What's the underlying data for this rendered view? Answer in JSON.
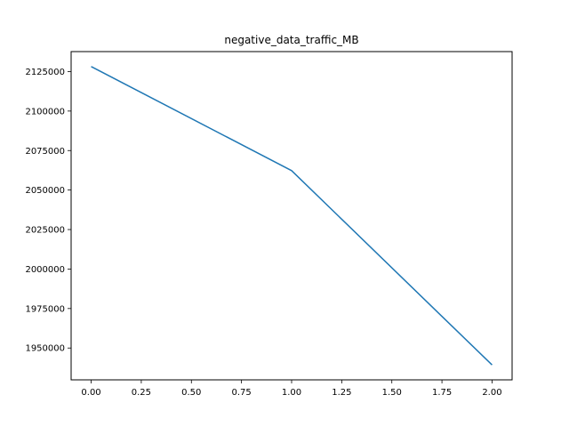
{
  "chart_data": {
    "type": "line",
    "title": "negative_data_traffic_MB",
    "xlabel": "",
    "ylabel": "",
    "x": [
      0,
      1,
      2
    ],
    "series": [
      {
        "values": [
          2128200,
          2062300,
          1939300
        ],
        "color": "#1f77b4"
      }
    ],
    "xlim": [
      -0.1,
      2.1
    ],
    "ylim": [
      1929850,
      2137650
    ],
    "xticks": [
      0.0,
      0.25,
      0.5,
      0.75,
      1.0,
      1.25,
      1.5,
      1.75,
      2.0
    ],
    "xtick_labels": [
      "0.00",
      "0.25",
      "0.50",
      "0.75",
      "1.00",
      "1.25",
      "1.50",
      "1.75",
      "2.00"
    ],
    "yticks": [
      1950000,
      1975000,
      2000000,
      2025000,
      2050000,
      2075000,
      2100000,
      2125000
    ],
    "ytick_labels": [
      "1950000",
      "1975000",
      "2000000",
      "2025000",
      "2050000",
      "2075000",
      "2100000",
      "2125000"
    ],
    "grid": false,
    "legend": false
  }
}
